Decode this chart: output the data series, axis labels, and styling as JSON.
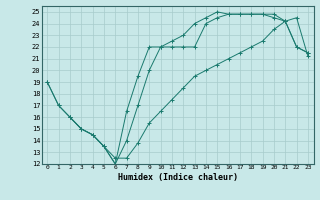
{
  "xlabel": "Humidex (Indice chaleur)",
  "background_color": "#c8e8e8",
  "line_color": "#1a7a6e",
  "grid_color": "#a8cccc",
  "xlim": [
    -0.5,
    23.5
  ],
  "ylim": [
    12,
    25.5
  ],
  "yticks": [
    12,
    13,
    14,
    15,
    16,
    17,
    18,
    19,
    20,
    21,
    22,
    23,
    24,
    25
  ],
  "xticks": [
    0,
    1,
    2,
    3,
    4,
    5,
    6,
    7,
    8,
    9,
    10,
    11,
    12,
    13,
    14,
    15,
    16,
    17,
    18,
    19,
    20,
    21,
    22,
    23
  ],
  "line1_x": [
    0,
    1,
    2,
    3,
    4,
    5,
    6,
    7,
    8,
    9,
    10,
    11,
    12,
    13,
    14,
    15,
    16,
    17,
    18,
    19,
    20,
    21,
    22,
    23
  ],
  "line1_y": [
    19,
    17,
    16,
    15,
    14.5,
    13.5,
    12,
    14,
    17,
    20,
    22,
    22,
    22,
    22,
    24,
    24.5,
    24.8,
    24.8,
    24.8,
    24.8,
    24.8,
    24.2,
    22,
    21.5
  ],
  "line2_x": [
    0,
    1,
    2,
    3,
    4,
    5,
    6,
    7,
    8,
    9,
    10,
    11,
    12,
    13,
    14,
    15,
    16,
    17,
    18,
    19,
    20,
    21,
    22,
    23
  ],
  "line2_y": [
    19,
    17,
    16,
    15,
    14.5,
    13.5,
    12,
    16.5,
    19.5,
    22,
    22,
    22.5,
    23,
    24,
    24.5,
    25,
    24.8,
    24.8,
    24.8,
    24.8,
    24.5,
    24.2,
    22,
    21.5
  ],
  "line3_x": [
    2,
    3,
    4,
    5,
    6,
    7,
    8,
    9,
    10,
    11,
    12,
    13,
    14,
    15,
    16,
    17,
    18,
    19,
    20,
    21,
    22,
    23
  ],
  "line3_y": [
    16,
    15,
    14.5,
    13.5,
    12.5,
    12.5,
    13.8,
    15.5,
    16.5,
    17.5,
    18.5,
    19.5,
    20,
    20.5,
    21,
    21.5,
    22,
    22.5,
    23.5,
    24.2,
    24.5,
    21.2
  ]
}
